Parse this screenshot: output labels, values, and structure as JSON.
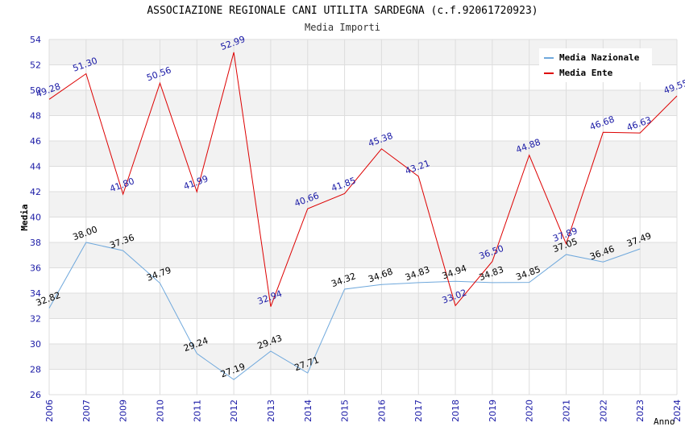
{
  "chart_data": {
    "type": "line",
    "title": "ASSOCIAZIONE REGIONALE CANI UTILITA SARDEGNA (c.f.92061720923)",
    "subtitle": "Media Importi",
    "xlabel": "Anno",
    "ylabel": "Media",
    "x": [
      "2006",
      "2007",
      "2009",
      "2010",
      "2011",
      "2012",
      "2013",
      "2014",
      "2015",
      "2016",
      "2017",
      "2018",
      "2019",
      "2020",
      "2021",
      "2022",
      "2023",
      "2024"
    ],
    "ylim": [
      26,
      54
    ],
    "yticks": [
      26,
      28,
      30,
      32,
      34,
      36,
      38,
      40,
      42,
      44,
      46,
      48,
      50,
      52,
      54
    ],
    "series": [
      {
        "name": "Media Nazionale",
        "color": "#6fa8dc",
        "label_color": "#000000",
        "values": [
          32.82,
          38.0,
          37.36,
          34.79,
          29.24,
          27.19,
          29.43,
          27.71,
          34.32,
          34.68,
          34.83,
          34.94,
          34.83,
          34.85,
          37.05,
          36.46,
          37.49,
          null
        ],
        "labels": [
          "32.82",
          "38.00",
          "37.36",
          "34.79",
          "29.24",
          "27.19",
          "29.43",
          "27.71",
          "34.32",
          "34.68",
          "34.83",
          "34.94",
          "34.83",
          "34.85",
          "37.05",
          "36.46",
          "37.49",
          ""
        ]
      },
      {
        "name": "Media Ente",
        "color": "#dd0000",
        "label_color": "#1a1aa6",
        "values": [
          49.28,
          51.3,
          41.8,
          50.56,
          41.99,
          52.99,
          32.94,
          40.66,
          41.85,
          45.38,
          43.21,
          33.02,
          36.5,
          44.88,
          37.89,
          46.68,
          46.63,
          49.55
        ],
        "labels": [
          "49.28",
          "51.30",
          "41.80",
          "50.56",
          "41.99",
          "52.99",
          "32.94",
          "40.66",
          "41.85",
          "45.38",
          "43.21",
          "33.02",
          "36.50",
          "44.88",
          "37.89",
          "46.68",
          "46.63",
          "49.55"
        ]
      }
    ],
    "legend": "top-right",
    "grid": true
  }
}
